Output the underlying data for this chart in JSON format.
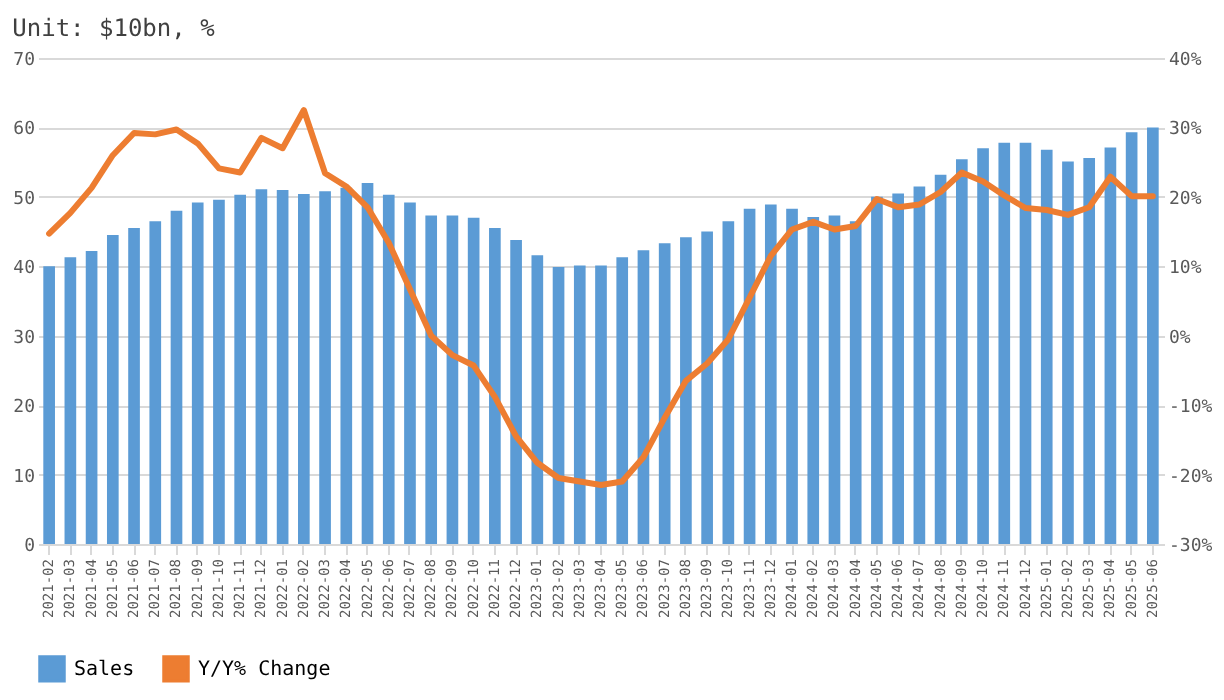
{
  "chart_data": {
    "type": "bar",
    "title": "Unit: $10bn, %",
    "categories": [
      "2021-02",
      "2021-03",
      "2021-04",
      "2021-05",
      "2021-06",
      "2021-07",
      "2021-08",
      "2021-09",
      "2021-10",
      "2021-11",
      "2021-12",
      "2022-01",
      "2022-02",
      "2022-03",
      "2022-04",
      "2022-05",
      "2022-06",
      "2022-07",
      "2022-08",
      "2022-09",
      "2022-10",
      "2022-11",
      "2022-12",
      "2023-01",
      "2023-02",
      "2023-03",
      "2023-04",
      "2023-05",
      "2023-06",
      "2023-07",
      "2023-08",
      "2023-09",
      "2023-10",
      "2023-11",
      "2023-12",
      "2024-01",
      "2024-02",
      "2024-03",
      "2024-04",
      "2024-05",
      "2024-06",
      "2024-07",
      "2024-08",
      "2024-09",
      "2024-10",
      "2024-11",
      "2024-12",
      "2025-01",
      "2025-02",
      "2025-03",
      "2025-04",
      "2025-05",
      "2025-06"
    ],
    "series": [
      {
        "name": "Sales",
        "color": "#5b9bd5",
        "values": [
          40,
          41.3,
          42.2,
          44.5,
          45.5,
          46.5,
          48,
          49.2,
          49.6,
          50.3,
          51.1,
          51,
          50.4,
          50.8,
          51.3,
          52,
          50.3,
          49.2,
          47.3,
          47.3,
          47,
          45.5,
          43.8,
          41.6,
          39.9,
          40.1,
          40.1,
          41.3,
          42.3,
          43.3,
          44.2,
          45,
          46.5,
          48.3,
          48.9,
          48.3,
          47.1,
          47.3,
          46.5,
          50,
          50.5,
          51.5,
          53.2,
          55.4,
          57,
          57.8,
          57.8,
          56.8,
          55.1,
          55.6,
          57.1,
          59.3,
          60
        ]
      },
      {
        "name": "Y/Y% Change",
        "type": "line",
        "axis": "y2",
        "color": "#ed7d31",
        "values": [
          14.7,
          17.7,
          21.3,
          26,
          29.2,
          29,
          29.7,
          27.7,
          24.1,
          23.5,
          28.5,
          27,
          32.5,
          23.4,
          21.5,
          18.5,
          13.4,
          6.7,
          0,
          -2.8,
          -4.3,
          -8.8,
          -14.5,
          -18.3,
          -20.5,
          -21,
          -21.5,
          -21,
          -17.5,
          -11.8,
          -6.5,
          -4,
          -0.5,
          5.5,
          11.5,
          15.3,
          16.4,
          15.3,
          15.8,
          19.7,
          18.5,
          18.9,
          20.7,
          23.5,
          22.2,
          20.2,
          18.4,
          18.1,
          17.4,
          18.5,
          22.9,
          20.1,
          20.1
        ]
      }
    ],
    "ylim": [
      0,
      70
    ],
    "yticks": [
      0,
      10,
      20,
      30,
      40,
      50,
      60,
      70
    ],
    "y2lim": [
      -30,
      40
    ],
    "y2ticks": [
      {
        "value": -30,
        "label": "-30%"
      },
      {
        "value": -20,
        "label": "-20%"
      },
      {
        "value": -10,
        "label": "-10%"
      },
      {
        "value": 0,
        "label": "0%"
      },
      {
        "value": 10,
        "label": "10%"
      },
      {
        "value": 20,
        "label": "20%"
      },
      {
        "value": 30,
        "label": "30%"
      },
      {
        "value": 40,
        "label": "40%"
      }
    ],
    "grid": "y",
    "legend": "bottom"
  }
}
